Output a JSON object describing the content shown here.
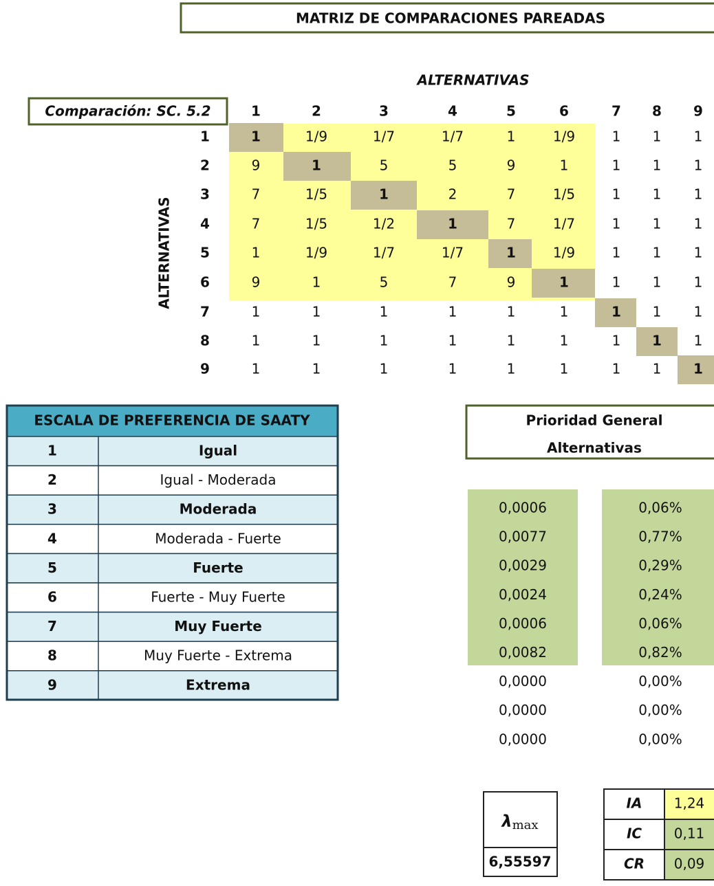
{
  "title": "MATRIZ DE COMPARACIONES PAREADAS",
  "col_header": "ALTERNATIVAS",
  "row_header": "ALTERNATIVAS",
  "corner_label": "Comparación: SC. 5.2",
  "column_labels": [
    "1",
    "2",
    "3",
    "4",
    "5",
    "6",
    "7",
    "8",
    "9"
  ],
  "row_labels": [
    "1",
    "2",
    "3",
    "4",
    "5",
    "6",
    "7",
    "8",
    "9"
  ],
  "matrix": [
    [
      "1",
      "1/9",
      "1/7",
      "1/7",
      "1",
      "1/9",
      "1",
      "1",
      "1"
    ],
    [
      "9",
      "1",
      "5",
      "5",
      "9",
      "1",
      "1",
      "1",
      "1"
    ],
    [
      "7",
      "1/5",
      "1",
      "2",
      "7",
      "1/5",
      "1",
      "1",
      "1"
    ],
    [
      "7",
      "1/5",
      "1/2",
      "1",
      "7",
      "1/7",
      "1",
      "1",
      "1"
    ],
    [
      "1",
      "1/9",
      "1/7",
      "1/7",
      "1",
      "1/9",
      "1",
      "1",
      "1"
    ],
    [
      "9",
      "1",
      "5",
      "7",
      "9",
      "1",
      "1",
      "1",
      "1"
    ],
    [
      "1",
      "1",
      "1",
      "1",
      "1",
      "1",
      "1",
      "1",
      "1"
    ],
    [
      "1",
      "1",
      "1",
      "1",
      "1",
      "1",
      "1",
      "1",
      "1"
    ],
    [
      "1",
      "1",
      "1",
      "1",
      "1",
      "1",
      "1",
      "1",
      "1"
    ]
  ],
  "saaty": {
    "header": "ESCALA DE PREFERENCIA DE SAATY",
    "rows": [
      [
        "1",
        "Igual"
      ],
      [
        "2",
        "Igual - Moderada"
      ],
      [
        "3",
        "Moderada"
      ],
      [
        "4",
        "Moderada - Fuerte"
      ],
      [
        "5",
        "Fuerte"
      ],
      [
        "6",
        "Fuerte - Muy Fuerte"
      ],
      [
        "7",
        "Muy Fuerte"
      ],
      [
        "8",
        "Muy Fuerte - Extrema"
      ],
      [
        "9",
        "Extrema"
      ]
    ]
  },
  "priority": {
    "title": [
      "Prioridad General",
      "Alternativas"
    ],
    "values": [
      "0,0006",
      "0,0077",
      "0,0029",
      "0,0024",
      "0,0006",
      "0,0082",
      "0,0000",
      "0,0000",
      "0,0000"
    ],
    "percents": [
      "0,06%",
      "0,77%",
      "0,29%",
      "0,24%",
      "0,06%",
      "0,82%",
      "0,00%",
      "0,00%",
      "0,00%"
    ]
  },
  "lambda": {
    "symbol": "λ",
    "sub": "max",
    "value": "6,55597"
  },
  "indices": [
    [
      "IA",
      "1,24"
    ],
    [
      "IC",
      "0,11"
    ],
    [
      "CR",
      "0,09"
    ]
  ]
}
